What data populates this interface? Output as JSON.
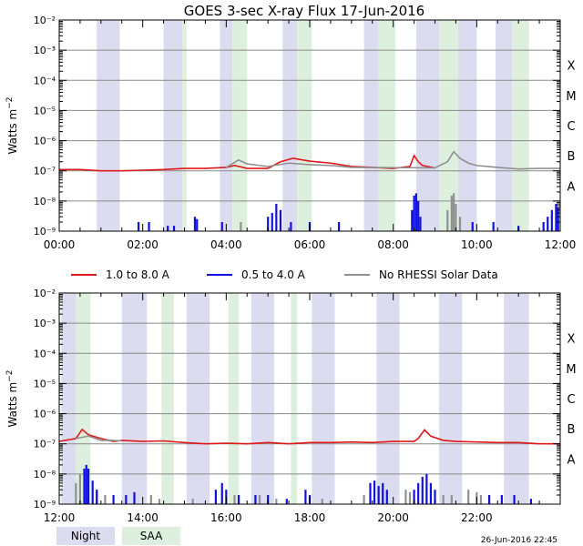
{
  "title": "GOES 3-sec X-ray Flux   17-Jun-2016",
  "ylabel": "Watts m",
  "ylabel_sup": "−2",
  "footer_date": "26-Jun-2016 22:45",
  "legend": [
    {
      "label": "1.0 to 8.0 A",
      "color": "#e01818"
    },
    {
      "label": "0.5 to 4.0 A",
      "color": "#1010e0"
    },
    {
      "label": "No RHESSI Solar Data",
      "color": "#909090"
    }
  ],
  "shade_legend": [
    {
      "label": "Night",
      "color": "#dcdcf0"
    },
    {
      "label": "SAA",
      "color": "#ddf0dd"
    }
  ],
  "flare_classes": [
    "X",
    "M",
    "C",
    "B",
    "A"
  ],
  "colors": {
    "night": "#dcdcf0",
    "saa": "#ddf0dd",
    "long": "#e01818",
    "short": "#1010e0",
    "nodata": "#909090"
  },
  "chart_data": [
    {
      "type": "line",
      "x_unit": "hour",
      "xlim": [
        0,
        12
      ],
      "ylim": [
        1e-09,
        0.01
      ],
      "yscale": "log",
      "xtick_labels": [
        "00:00",
        "02:00",
        "04:00",
        "06:00",
        "08:00",
        "10:00",
        "12:00"
      ],
      "ytick_labels": [
        "10⁻⁹",
        "10⁻⁸",
        "10⁻⁷",
        "10⁻⁶",
        "10⁻⁵",
        "10⁻⁴",
        "10⁻³",
        "10⁻²"
      ],
      "night": [
        [
          0.9,
          1.45
        ],
        [
          2.5,
          2.95
        ],
        [
          3.85,
          4.15
        ],
        [
          5.35,
          5.7
        ],
        [
          7.3,
          7.65
        ],
        [
          8.55,
          9.1
        ],
        [
          9.55,
          10.0
        ],
        [
          10.45,
          10.85
        ]
      ],
      "saa": [
        [
          2.95,
          3.05
        ],
        [
          4.15,
          4.5
        ],
        [
          5.7,
          6.05
        ],
        [
          7.65,
          8.05
        ],
        [
          9.1,
          9.55
        ],
        [
          10.85,
          11.25
        ]
      ],
      "series": [
        {
          "name": "1.0 to 8.0 A",
          "color": "#e01818",
          "x": [
            0,
            0.5,
            1.0,
            1.5,
            2.0,
            2.5,
            3.0,
            3.5,
            4.0,
            4.2,
            4.5,
            5.0,
            5.3,
            5.6,
            6.0,
            6.5,
            7.0,
            7.5,
            8.0,
            8.4,
            8.5,
            8.6,
            8.7,
            9.0
          ],
          "y": [
            1.1e-07,
            1.1e-07,
            1e-07,
            1e-07,
            1.05e-07,
            1.1e-07,
            1.2e-07,
            1.2e-07,
            1.3e-07,
            1.5e-07,
            1.2e-07,
            1.2e-07,
            2e-07,
            2.6e-07,
            2.1e-07,
            1.8e-07,
            1.4e-07,
            1.3e-07,
            1.2e-07,
            1.4e-07,
            3.2e-07,
            2e-07,
            1.5e-07,
            1.25e-07
          ]
        },
        {
          "name": "No RHESSI Solar Data",
          "color": "#909090",
          "x": [
            4.0,
            4.3,
            4.5,
            4.8,
            5.0,
            5.5,
            6.0,
            6.5,
            7.0,
            9.0,
            9.3,
            9.45,
            9.6,
            9.8,
            10.0,
            10.5,
            11.0,
            11.5,
            11.8,
            12.0
          ],
          "y": [
            1.3e-07,
            2.3e-07,
            1.7e-07,
            1.5e-07,
            1.4e-07,
            1.8e-07,
            1.6e-07,
            1.5e-07,
            1.3e-07,
            1.25e-07,
            2e-07,
            4.3e-07,
            2.6e-07,
            1.8e-07,
            1.5e-07,
            1.3e-07,
            1.15e-07,
            1.2e-07,
            1.2e-07,
            1.2e-07
          ]
        }
      ],
      "short_spikes": [
        {
          "x": 1.9,
          "y": 2e-09
        },
        {
          "x": 2.15,
          "y": 2e-09
        },
        {
          "x": 2.6,
          "y": 1.5e-09
        },
        {
          "x": 2.75,
          "y": 1.5e-09
        },
        {
          "x": 3.25,
          "y": 3e-09
        },
        {
          "x": 3.3,
          "y": 2.5e-09
        },
        {
          "x": 3.9,
          "y": 2e-09
        },
        {
          "x": 5.0,
          "y": 3e-09
        },
        {
          "x": 5.1,
          "y": 4e-09
        },
        {
          "x": 5.2,
          "y": 8e-09
        },
        {
          "x": 5.3,
          "y": 5e-09
        },
        {
          "x": 5.55,
          "y": 2e-09
        },
        {
          "x": 6.0,
          "y": 2e-09
        },
        {
          "x": 6.7,
          "y": 2e-09
        },
        {
          "x": 8.45,
          "y": 5e-09
        },
        {
          "x": 8.5,
          "y": 1.5e-08
        },
        {
          "x": 8.55,
          "y": 1.8e-08
        },
        {
          "x": 8.6,
          "y": 1e-08
        },
        {
          "x": 8.65,
          "y": 3e-09
        },
        {
          "x": 9.9,
          "y": 2e-09
        },
        {
          "x": 10.4,
          "y": 2e-09
        },
        {
          "x": 11.0,
          "y": 1.5e-09
        },
        {
          "x": 11.6,
          "y": 2e-09
        },
        {
          "x": 11.7,
          "y": 3e-09
        },
        {
          "x": 11.8,
          "y": 5e-09
        },
        {
          "x": 11.9,
          "y": 8e-09
        },
        {
          "x": 11.95,
          "y": 6e-09
        }
      ],
      "nodata_spikes": [
        {
          "x": 4.35,
          "y": 2e-09
        },
        {
          "x": 9.3,
          "y": 5e-09
        },
        {
          "x": 9.4,
          "y": 1.5e-08
        },
        {
          "x": 9.45,
          "y": 1.8e-08
        },
        {
          "x": 9.5,
          "y": 8e-09
        },
        {
          "x": 9.6,
          "y": 3e-09
        }
      ]
    },
    {
      "type": "line",
      "x_unit": "hour",
      "xlim": [
        12,
        24
      ],
      "ylim": [
        1e-09,
        0.01
      ],
      "yscale": "log",
      "xtick_labels": [
        "12:00",
        "14:00",
        "16:00",
        "18:00",
        "20:00",
        "22:00"
      ],
      "ytick_labels": [
        "10⁻⁹",
        "10⁻⁸",
        "10⁻⁷",
        "10⁻⁶",
        "10⁻⁵",
        "10⁻⁴",
        "10⁻³",
        "10⁻²"
      ],
      "night": [
        [
          12.05,
          12.4
        ],
        [
          13.5,
          14.1
        ],
        [
          15.05,
          15.6
        ],
        [
          16.6,
          17.15
        ],
        [
          18.05,
          18.6
        ],
        [
          19.6,
          20.15
        ],
        [
          21.1,
          21.65
        ],
        [
          22.65,
          23.25
        ]
      ],
      "saa": [
        [
          12.4,
          12.75
        ],
        [
          14.45,
          14.75
        ],
        [
          16.05,
          16.3
        ],
        [
          17.55,
          17.7
        ]
      ],
      "series": [
        {
          "name": "1.0 to 8.0 A",
          "color": "#e01818",
          "x": [
            12.0,
            12.4,
            12.55,
            12.7,
            13.0,
            13.3,
            13.5,
            14.0,
            14.5,
            15.0,
            15.5,
            16.0,
            16.5,
            17.0,
            17.5,
            18.0,
            18.5,
            19.0,
            19.5,
            20.0,
            20.5,
            20.6,
            20.75,
            20.9,
            21.2,
            21.5,
            22.0,
            22.5,
            23.0,
            23.5,
            24.0
          ],
          "y": [
            1.2e-07,
            1.5e-07,
            3e-07,
            2e-07,
            1.5e-07,
            1.2e-07,
            1.3e-07,
            1.2e-07,
            1.25e-07,
            1.1e-07,
            1e-07,
            1.05e-07,
            1e-07,
            1.1e-07,
            1e-07,
            1.1e-07,
            1.1e-07,
            1.15e-07,
            1.1e-07,
            1.2e-07,
            1.2e-07,
            1.5e-07,
            2.9e-07,
            1.8e-07,
            1.3e-07,
            1.2e-07,
            1.15e-07,
            1.1e-07,
            1.1e-07,
            1e-07,
            1e-07
          ]
        },
        {
          "name": "No RHESSI Solar Data",
          "color": "#909090",
          "x": [
            12.4,
            12.7,
            13.0,
            13.3,
            13.5
          ],
          "y": [
            1.5e-07,
            1.8e-07,
            1.3e-07,
            1.3e-07,
            1.25e-07
          ]
        }
      ],
      "short_spikes": [
        {
          "x": 12.6,
          "y": 1.5e-08
        },
        {
          "x": 12.65,
          "y": 2e-08
        },
        {
          "x": 12.7,
          "y": 1.5e-08
        },
        {
          "x": 12.8,
          "y": 6e-09
        },
        {
          "x": 12.9,
          "y": 3e-09
        },
        {
          "x": 13.3,
          "y": 2e-09
        },
        {
          "x": 13.6,
          "y": 2e-09
        },
        {
          "x": 13.8,
          "y": 2.5e-09
        },
        {
          "x": 15.75,
          "y": 3e-09
        },
        {
          "x": 15.9,
          "y": 5e-09
        },
        {
          "x": 16.0,
          "y": 3e-09
        },
        {
          "x": 16.3,
          "y": 2e-09
        },
        {
          "x": 16.7,
          "y": 2e-09
        },
        {
          "x": 17.0,
          "y": 2e-09
        },
        {
          "x": 17.45,
          "y": 1.5e-09
        },
        {
          "x": 17.9,
          "y": 3e-09
        },
        {
          "x": 18.0,
          "y": 2e-09
        },
        {
          "x": 19.45,
          "y": 5e-09
        },
        {
          "x": 19.55,
          "y": 6e-09
        },
        {
          "x": 19.65,
          "y": 4e-09
        },
        {
          "x": 19.75,
          "y": 5e-09
        },
        {
          "x": 19.85,
          "y": 3e-09
        },
        {
          "x": 20.5,
          "y": 3e-09
        },
        {
          "x": 20.6,
          "y": 5e-09
        },
        {
          "x": 20.7,
          "y": 8e-09
        },
        {
          "x": 20.8,
          "y": 1e-08
        },
        {
          "x": 20.9,
          "y": 5e-09
        },
        {
          "x": 21.0,
          "y": 3e-09
        },
        {
          "x": 22.3,
          "y": 2e-09
        },
        {
          "x": 22.6,
          "y": 2e-09
        },
        {
          "x": 22.9,
          "y": 2e-09
        },
        {
          "x": 23.3,
          "y": 1.5e-09
        }
      ],
      "nodata_spikes": [
        {
          "x": 12.4,
          "y": 5e-09
        },
        {
          "x": 12.5,
          "y": 1e-08
        },
        {
          "x": 12.9,
          "y": 3e-09
        },
        {
          "x": 13.1,
          "y": 2e-09
        },
        {
          "x": 14.2,
          "y": 2e-09
        },
        {
          "x": 14.4,
          "y": 1.5e-09
        },
        {
          "x": 15.2,
          "y": 1.5e-09
        },
        {
          "x": 16.2,
          "y": 2e-09
        },
        {
          "x": 16.8,
          "y": 2e-09
        },
        {
          "x": 17.2,
          "y": 1.5e-09
        },
        {
          "x": 18.3,
          "y": 1.5e-09
        },
        {
          "x": 19.3,
          "y": 2e-09
        },
        {
          "x": 20.3,
          "y": 3e-09
        },
        {
          "x": 20.4,
          "y": 2.5e-09
        },
        {
          "x": 21.2,
          "y": 2e-09
        },
        {
          "x": 21.4,
          "y": 2e-09
        },
        {
          "x": 21.8,
          "y": 3e-09
        },
        {
          "x": 22.0,
          "y": 2.5e-09
        },
        {
          "x": 22.1,
          "y": 2e-09
        }
      ]
    }
  ]
}
